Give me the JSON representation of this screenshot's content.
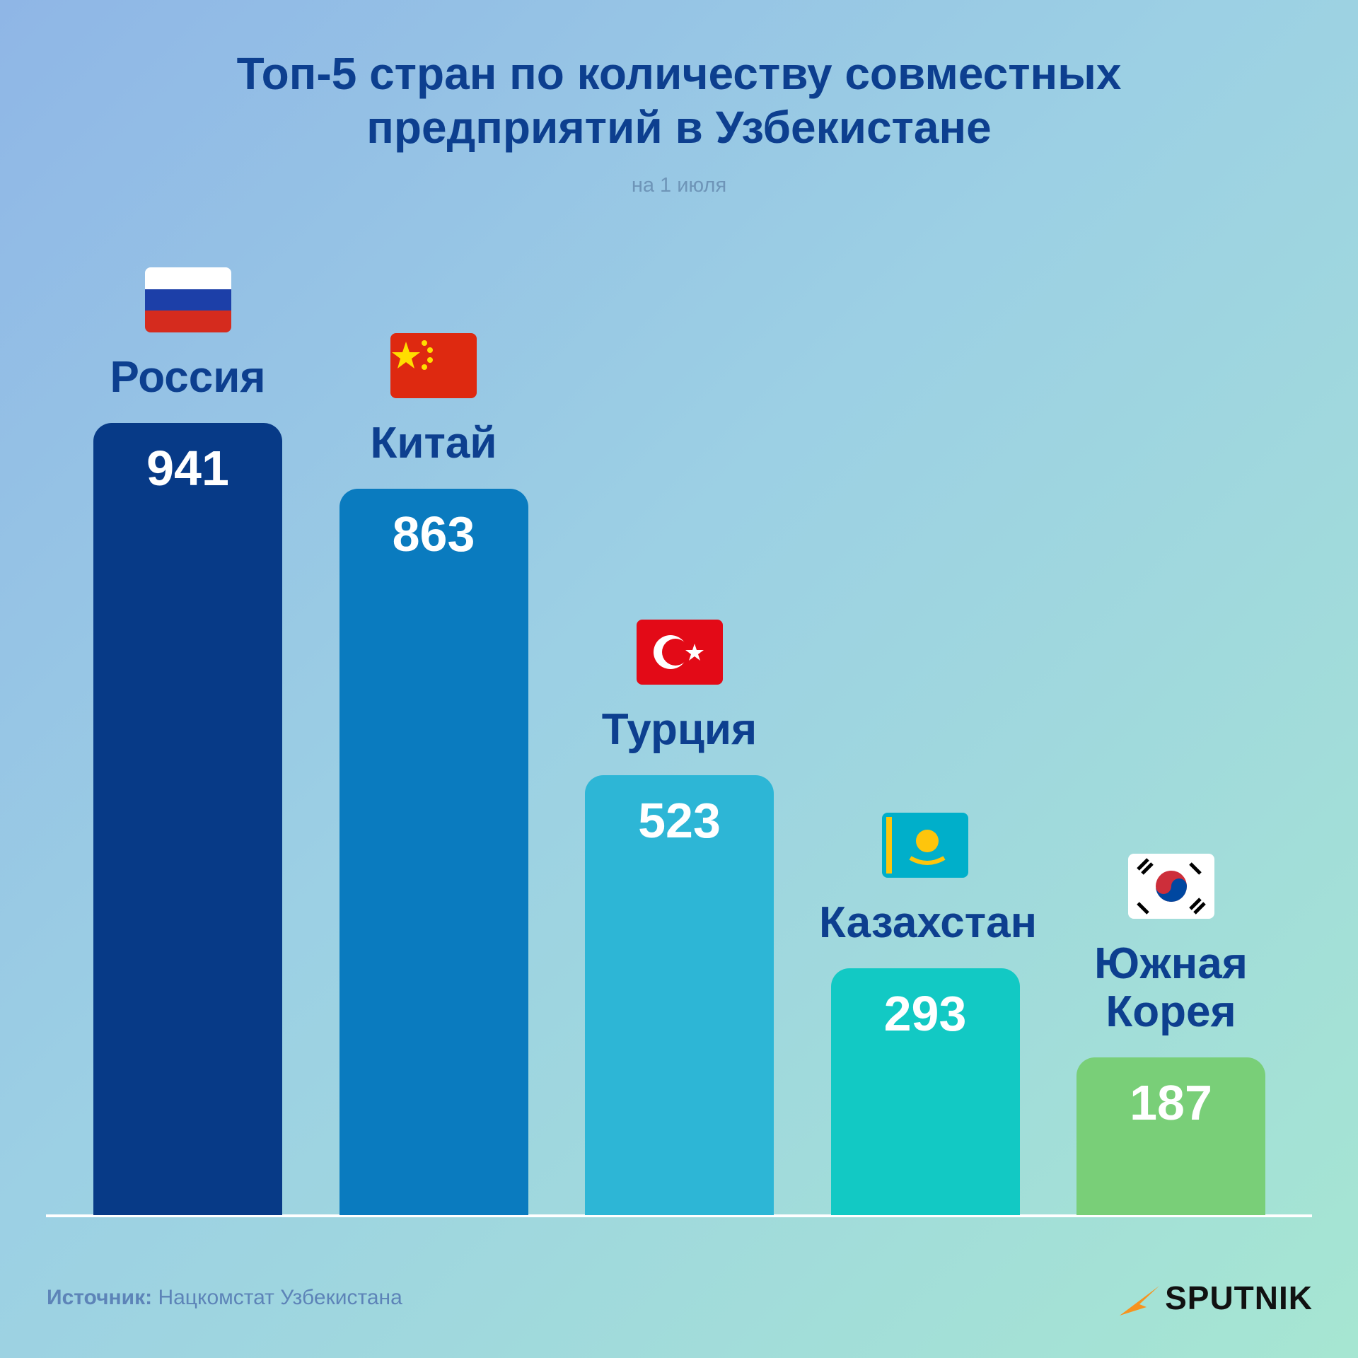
{
  "chart_data": {
    "type": "bar",
    "title": "Топ-5 стран по количеству совместных предприятий в Узбекистане",
    "subtitle": "на 1 июля",
    "categories": [
      "Россия",
      "Китай",
      "Турция",
      "Казахстан",
      "Южная Корея"
    ],
    "values": [
      941,
      863,
      523,
      293,
      187
    ],
    "colors": [
      "#073a87",
      "#0a7bbf",
      "#2db6d6",
      "#12c9c4",
      "#79cf78"
    ],
    "source_label": "Источник:",
    "source": "Нацкомстат Узбекистана",
    "logo": "SPUTNIK"
  }
}
